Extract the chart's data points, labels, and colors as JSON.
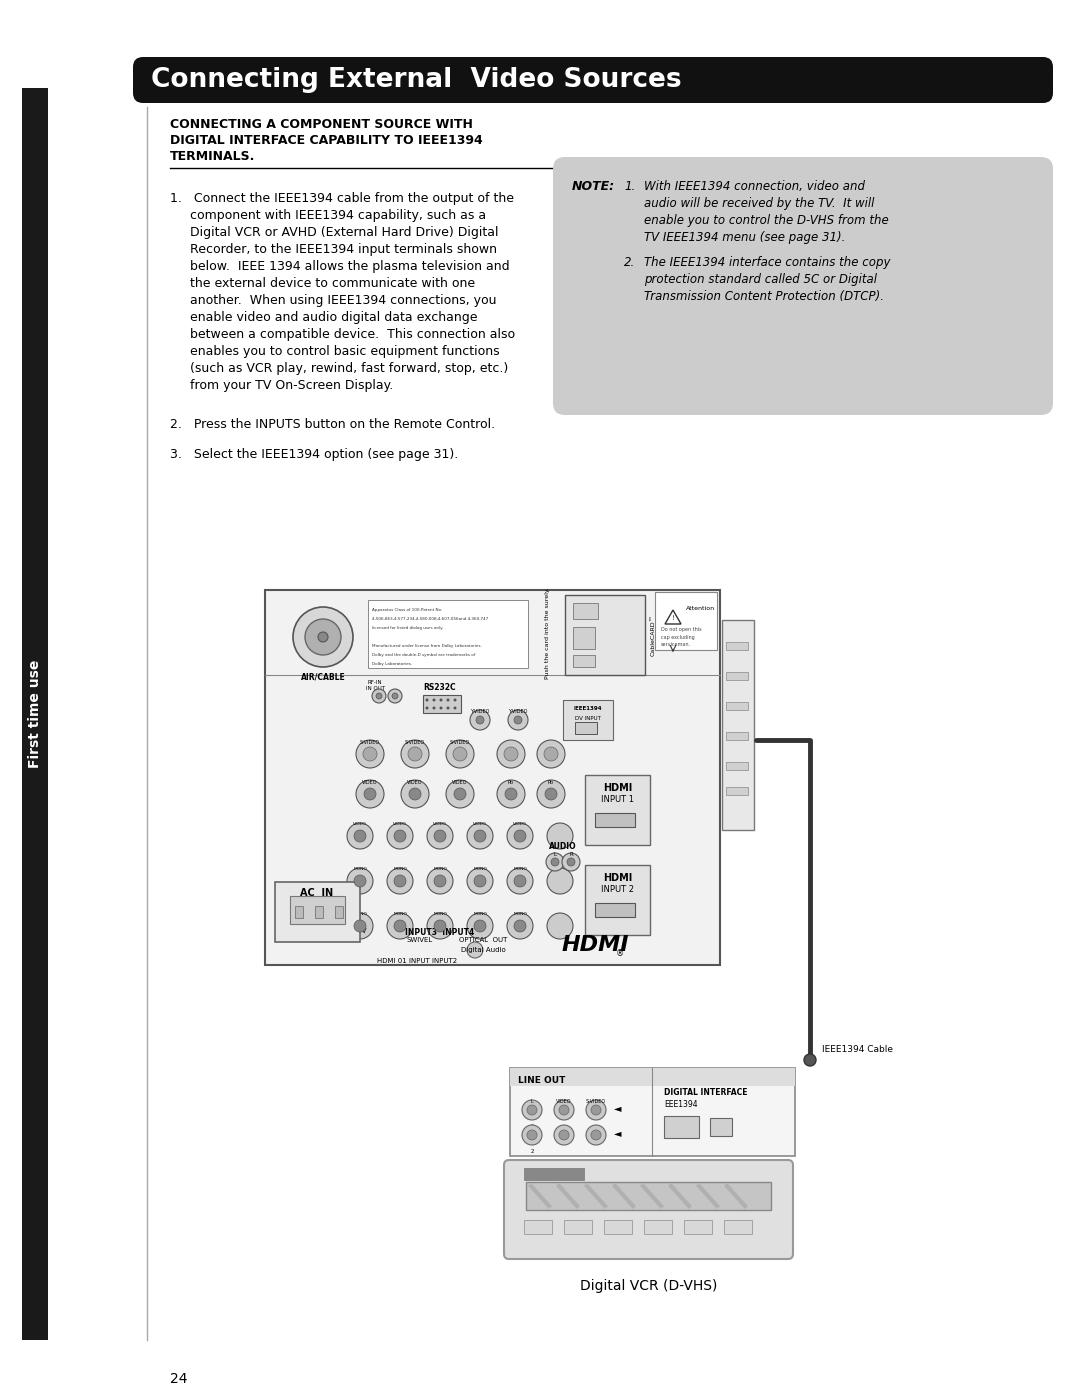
{
  "page_bg": "#ffffff",
  "header_bg": "#111111",
  "header_text": "Connecting External  Video Sources",
  "header_text_color": "#ffffff",
  "header_font_size": 19,
  "left_bar_color": "#1a1a1a",
  "left_bar_text": "First time use",
  "section_title_line1": "CONNECTING A COMPONENT SOURCE WITH",
  "section_title_line2": "DIGITAL INTERFACE CAPABILITY TO IEEE1394",
  "section_title_line3": "TERMINALS.",
  "note_bg": "#cccccc",
  "note_title": "NOTE:",
  "note_lines": [
    [
      "1.",
      "With IEEE1394 connection, video and"
    ],
    [
      "",
      "audio will be received by the TV.  It will"
    ],
    [
      "",
      "enable you to control the D-VHS from the"
    ],
    [
      "",
      "TV IEEE1394 menu (see page 31)."
    ],
    [
      "2.",
      "The IEEE1394 interface contains the copy"
    ],
    [
      "",
      "protection standard called 5C or Digital"
    ],
    [
      "",
      "Transmission Content Protection (DTCP)."
    ]
  ],
  "body1_lines": [
    "1.   Connect the IEEE1394 cable from the output of the",
    "     component with IEEE1394 capability, such as a",
    "     Digital VCR or AVHD (External Hard Drive) Digital",
    "     Recorder, to the IEEE1394 input terminals shown",
    "     below.  IEEE 1394 allows the plasma television and",
    "     the external device to communicate with one",
    "     another.  When using IEEE1394 connections, you",
    "     enable video and audio digital data exchange",
    "     between a compatible device.  This connection also",
    "     enables you to control basic equipment functions",
    "     (such as VCR play, rewind, fast forward, stop, etc.)",
    "     from your TV On-Screen Display."
  ],
  "body2": "2.   Press the INPUTS button on the Remote Control.",
  "body3": "3.   Select the IEEE1394 option (see page 31).",
  "diagram_caption": "Digital VCR (D-VHS)",
  "page_number": "24"
}
